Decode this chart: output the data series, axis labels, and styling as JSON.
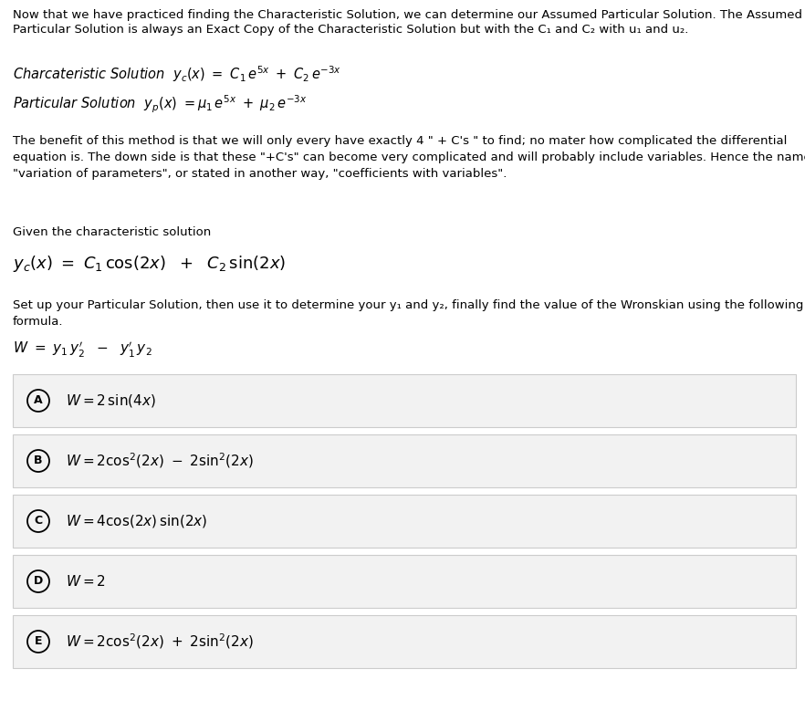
{
  "background_color": "#ffffff",
  "fig_width": 8.82,
  "fig_height": 7.9,
  "dpi": 100,
  "intro_text_line1": "Now that we have practiced finding the Characteristic Solution, we can determine our Assumed Particular Solution. The Assumed",
  "intro_text_line2": "Particular Solution is always an Exact Copy of the Characteristic Solution but with the C₁ and C₂ with u₁ and u₂.",
  "body_text": "The benefit of this method is that we will only every have exactly 4 \" + C's \" to find; no mater how complicated the differential\nequation is. The down side is that these \"+C's\" can become very complicated and will probably include variables. Hence the name\n\"variation of parameters\", or stated in another way, \"coefficients with variables\".",
  "given_text": "Given the characteristic solution",
  "setup_text": "Set up your Particular Solution, then use it to determine your y₁ and y₂, finally find the value of the Wronskian using the following\nformula.",
  "options": [
    {
      "label": "A",
      "eq": "$W = 2\\,\\sin(4x)$"
    },
    {
      "label": "B",
      "eq": "$W = 2\\cos^2\\!(2x)\\ -\\ 2\\sin^2\\!(2x)$"
    },
    {
      "label": "C",
      "eq": "$W = 4\\cos(2x)\\,\\sin(2x)$"
    },
    {
      "label": "D",
      "eq": "$W = 2$"
    },
    {
      "label": "E",
      "eq": "$W = 2\\cos^2\\!(2x)\\ +\\ 2\\sin^2\\!(2x)$"
    }
  ],
  "option_bg": "#f2f2f2",
  "option_border": "#cccccc",
  "text_color": "#000000"
}
